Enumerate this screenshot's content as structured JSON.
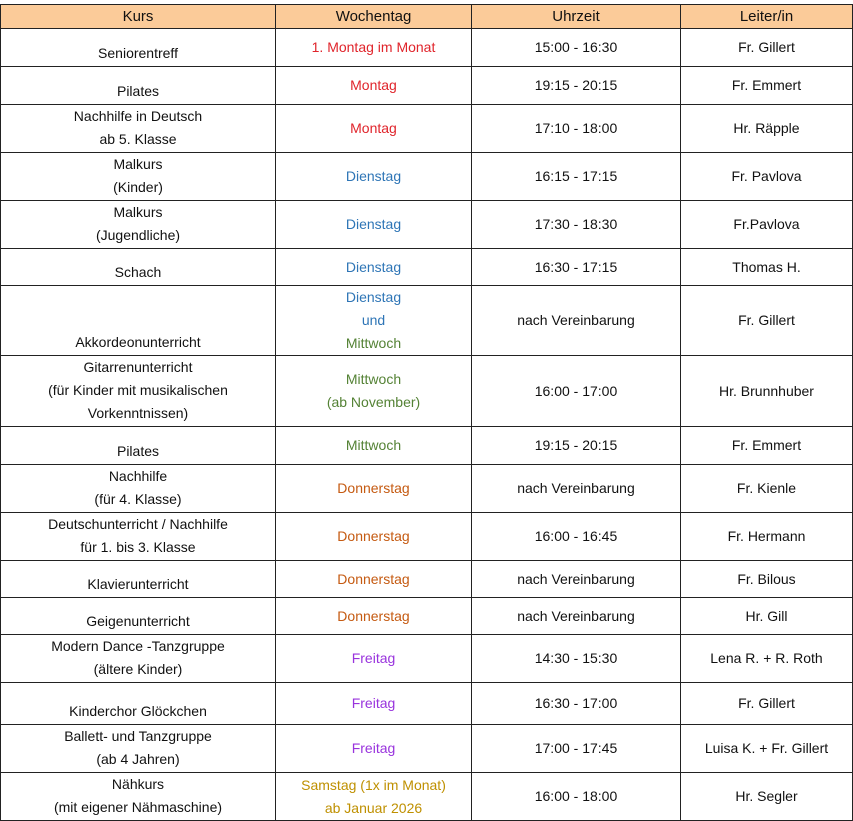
{
  "colors": {
    "header_bg": "#fbcb99",
    "Montag": "#e0242b",
    "Dienstag": "#2e75b6",
    "Mittwoch": "#548235",
    "Donnerstag": "#c55a11",
    "Freitag": "#9933dd",
    "Samstag": "#bf9000"
  },
  "headers": [
    "Kurs",
    "Wochentag",
    "Uhrzeit",
    "Leiter/in"
  ],
  "rows": [
    {
      "kurs": [
        "Seniorentreff"
      ],
      "tag": [
        "1. Montag im Monat"
      ],
      "color": "#e0242b",
      "zeit": "15:00 - 16:30",
      "leiter": "Fr. Gillert"
    },
    {
      "kurs": [
        "Pilates"
      ],
      "tag": [
        "Montag"
      ],
      "color": "#e0242b",
      "zeit": "19:15 - 20:15",
      "leiter": "Fr. Emmert"
    },
    {
      "kurs": [
        "Nachhilfe in Deutsch",
        "ab 5. Klasse"
      ],
      "tag": [
        "Montag"
      ],
      "color": "#e0242b",
      "zeit": "17:10 - 18:00",
      "leiter": "Hr. Räpple"
    },
    {
      "kurs": [
        "Malkurs",
        "(Kinder)"
      ],
      "tag": [
        "Dienstag"
      ],
      "color": "#2e75b6",
      "zeit": "16:15 - 17:15",
      "leiter": "Fr. Pavlova"
    },
    {
      "kurs": [
        "Malkurs",
        "(Jugendliche)"
      ],
      "tag": [
        "Dienstag"
      ],
      "color": "#2e75b6",
      "zeit": "17:30 - 18:30",
      "leiter": "Fr.Pavlova"
    },
    {
      "kurs": [
        "Schach"
      ],
      "tag": [
        "Dienstag"
      ],
      "color": "#2e75b6",
      "zeit": "16:30 - 17:15",
      "leiter": "Thomas H."
    },
    {
      "kurs": [
        "Akkordeonunterricht"
      ],
      "tag": [
        "Dienstag",
        "und",
        "Mittwoch"
      ],
      "color": "#2e75b6",
      "color2": "#548235",
      "zeit": "nach Vereinbarung",
      "leiter": "Fr. Gillert"
    },
    {
      "kurs": [
        "Gitarrenunterricht",
        "(für Kinder mit musikalischen",
        "Vorkenntnissen)"
      ],
      "tag": [
        "Mittwoch",
        "(ab November)"
      ],
      "color": "#548235",
      "zeit": "16:00 - 17:00",
      "leiter": "Hr. Brunnhuber"
    },
    {
      "kurs": [
        "Pilates"
      ],
      "tag": [
        "Mittwoch"
      ],
      "color": "#548235",
      "zeit": "19:15 - 20:15",
      "leiter": "Fr. Emmert"
    },
    {
      "kurs": [
        "Nachhilfe",
        "(für 4. Klasse)"
      ],
      "tag": [
        "Donnerstag"
      ],
      "color": "#c55a11",
      "zeit": "nach Vereinbarung",
      "leiter": "Fr. Kienle"
    },
    {
      "kurs": [
        "Deutschunterricht / Nachhilfe",
        "für 1. bis  3. Klasse"
      ],
      "tag": [
        "Donnerstag"
      ],
      "color": "#c55a11",
      "zeit": "16:00 - 16:45",
      "leiter": "Fr. Hermann"
    },
    {
      "kurs": [
        "Klavierunterricht"
      ],
      "tag": [
        "Donnerstag"
      ],
      "color": "#c55a11",
      "zeit": "nach Vereinbarung",
      "leiter": "Fr. Bilous"
    },
    {
      "kurs": [
        "Geigenunterricht"
      ],
      "tag": [
        "Donnerstag"
      ],
      "color": "#c55a11",
      "zeit": "nach Vereinbarung",
      "leiter": "Hr. Gill"
    },
    {
      "kurs": [
        "Modern Dance -Tanzgruppe",
        "(ältere Kinder)"
      ],
      "tag": [
        "Freitag"
      ],
      "color": "#9933dd",
      "zeit": "14:30 - 15:30",
      "leiter": "Lena R. + R. Roth"
    },
    {
      "kurs": [
        "Kinderchor Glöckchen"
      ],
      "tag": [
        "Freitag"
      ],
      "color": "#9933dd",
      "zeit": "16:30 - 17:00",
      "leiter": "Fr. Gillert"
    },
    {
      "kurs": [
        "Ballett- und Tanzgruppe",
        "(ab 4 Jahren)"
      ],
      "tag": [
        "Freitag"
      ],
      "color": "#9933dd",
      "zeit": "17:00 - 17:45",
      "leiter": "Luisa K. + Fr. Gillert"
    },
    {
      "kurs": [
        "Nähkurs",
        "(mit eigener Nähmaschine)"
      ],
      "tag": [
        "Samstag (1x im Monat)",
        "ab Januar 2026"
      ],
      "color": "#bf9000",
      "zeit": "16:00 - 18:00",
      "leiter": "Hr. Segler"
    }
  ]
}
